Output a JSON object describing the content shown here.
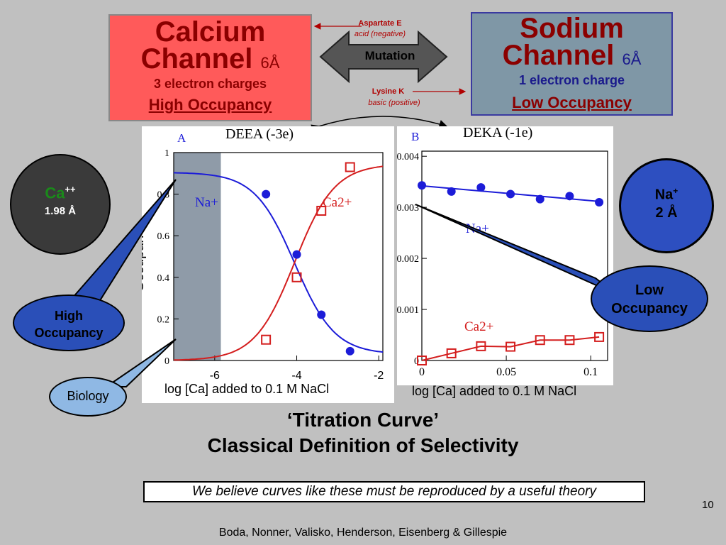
{
  "calcium": {
    "title_line1": "Calcium",
    "title_line2": "Channel",
    "size": "6Å",
    "charges": "3 electron charges",
    "occupancy": "High Occupancy"
  },
  "sodium": {
    "title_line1": "Sodium",
    "title_line2": "Channel",
    "size": "6Å",
    "charges": "1 electron charge",
    "occupancy": "Low Occupancy"
  },
  "mutation": {
    "label": "Mutation",
    "top_name": "Aspartate E",
    "top_desc": "acid (negative)",
    "bottom_name": "Lysine K",
    "bottom_desc": "basic (positive)"
  },
  "ca_ion": {
    "symbol": "Ca",
    "charge": "++",
    "radius": "1.98 Å"
  },
  "na_ion": {
    "symbol": "Na",
    "charge": "+",
    "radius": "2 Å"
  },
  "callouts": {
    "high": "High Occupancy",
    "low": "Low Occupancy",
    "biology": "Biology"
  },
  "titles": {
    "line1": "‘Titration Curve’",
    "line2": "Classical Definition of Selectivity"
  },
  "note": "We believe curves like these must be reproduced by a useful theory",
  "page_number": "10",
  "authors": "Boda, Nonner, Valisko, Henderson, Eisenberg & Gillespie",
  "colors": {
    "na_series": "#1c1cd8",
    "ca_series": "#d41e1e",
    "ca_box": "#ff5a5a",
    "na_box": "#7f97a6",
    "ellipse": "#2a4fb8"
  },
  "chart_data": [
    {
      "type": "line",
      "panel_label": "A",
      "title": "DEEA (-3e)",
      "xlabel": "log [Ca] added to 0.1 M NaCl",
      "ylabel": "Occupancy",
      "xlim": [
        -7,
        -1.9
      ],
      "ylim": [
        0,
        1
      ],
      "x_ticks": [
        "-6",
        "-4",
        "-2"
      ],
      "y_ticks": [
        "0",
        "0.2",
        "0.4",
        "0.6",
        "0.8",
        "1"
      ],
      "grid": false,
      "series": [
        {
          "name": "Na+",
          "marker": "circle",
          "x": [
            -4.75,
            -4,
            -3.4,
            -2.7
          ],
          "y": [
            0.8,
            0.51,
            0.22,
            0.045
          ]
        },
        {
          "name": "Ca2+",
          "marker": "square",
          "x": [
            -4.75,
            -4,
            -3.4,
            -2.7
          ],
          "y": [
            0.1,
            0.4,
            0.72,
            0.93
          ]
        }
      ]
    },
    {
      "type": "line",
      "panel_label": "B",
      "title": "DEKA (-1e)",
      "xlabel": "log [Ca] added to 0.1 M NaCl",
      "xlim": [
        0,
        0.11
      ],
      "ylim": [
        0,
        0.0041
      ],
      "x_ticks": [
        "0",
        "0.05",
        "0.1"
      ],
      "y_ticks": [
        "0",
        "0.001",
        "0.002",
        "0.003",
        "0.004"
      ],
      "grid": false,
      "series": [
        {
          "name": "Na+",
          "marker": "circle",
          "x": [
            0,
            0.0175,
            0.035,
            0.0525,
            0.07,
            0.0875,
            0.105
          ],
          "y": [
            0.00343,
            0.00331,
            0.00339,
            0.00326,
            0.00316,
            0.00322,
            0.0031
          ]
        },
        {
          "name": "Ca2+",
          "marker": "square",
          "x": [
            0,
            0.0175,
            0.035,
            0.0525,
            0.07,
            0.0875,
            0.105
          ],
          "y": [
            0.0,
            0.00014,
            0.00028,
            0.00027,
            0.0004,
            0.0004,
            0.00046
          ]
        }
      ]
    }
  ]
}
